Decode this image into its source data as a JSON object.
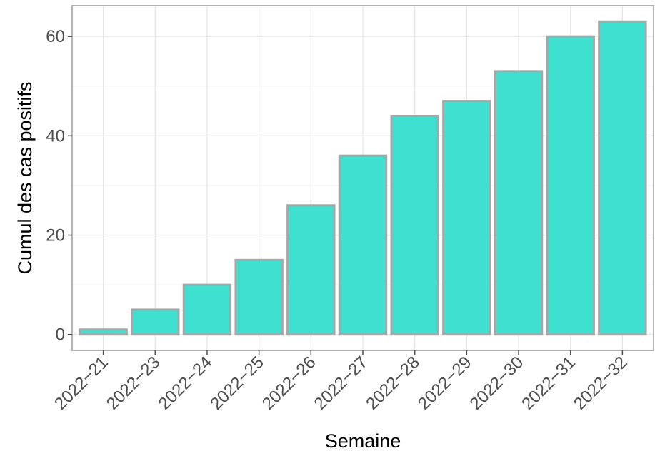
{
  "chart_data": {
    "type": "bar",
    "title": "",
    "xlabel": "Semaine",
    "ylabel": "Cumul des cas positifs",
    "categories": [
      "2022−21",
      "2022−23",
      "2022−24",
      "2022−25",
      "2022−26",
      "2022−27",
      "2022−28",
      "2022−29",
      "2022−30",
      "2022−31",
      "2022−32"
    ],
    "values": [
      1,
      5,
      10,
      15,
      26,
      36,
      44,
      47,
      53,
      60,
      63
    ],
    "ylim": [
      -3.2,
      66.2
    ],
    "yticks": [
      0,
      20,
      40,
      60
    ],
    "grid": true,
    "legend": "none",
    "colors": {
      "bar_fill": "#40E0D0",
      "bar_stroke": "#A6A6A6",
      "panel_border": "#B3B3B3"
    }
  }
}
